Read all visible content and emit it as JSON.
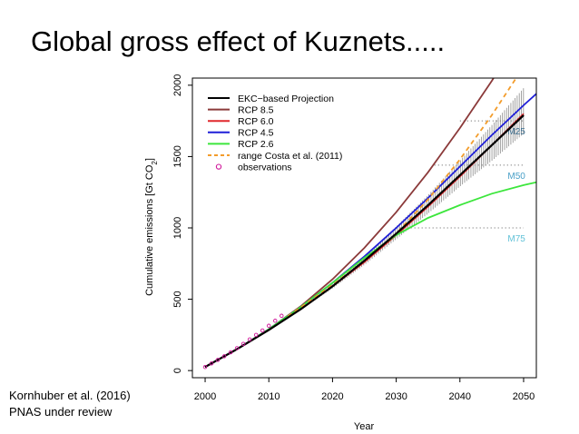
{
  "slide": {
    "title": "Global gross effect of Kuznets.....",
    "citation_line1": "Kornhuber et al. (2016)",
    "citation_line2": "PNAS under review"
  },
  "chart_data": {
    "type": "line",
    "title": "",
    "xlabel": "Year",
    "ylabel": "Cumulative emissions [Gt CO",
    "ylabel_sub": "2",
    "ylabel_close": "]",
    "xlim": [
      1998,
      2052
    ],
    "ylim": [
      -50,
      2050
    ],
    "xticks": [
      2000,
      2010,
      2020,
      2030,
      2040,
      2050
    ],
    "yticks": [
      0,
      500,
      1000,
      1500,
      2000
    ],
    "grid": false,
    "legend_position": "top-left",
    "legend": [
      {
        "label": "EKC−based Projection",
        "color": "#000000",
        "style": "solid"
      },
      {
        "label": "RCP 8.5",
        "color": "#8b3a3a",
        "style": "solid"
      },
      {
        "label": "RCP 6.0",
        "color": "#e0282c",
        "style": "solid"
      },
      {
        "label": "RCP 4.5",
        "color": "#1f1fd8",
        "style": "solid"
      },
      {
        "label": "RCP 2.6",
        "color": "#3ce63c",
        "style": "solid"
      },
      {
        "label": "range Costa et al. (2011)",
        "color": "#f39c2b",
        "style": "dashed"
      },
      {
        "label": "observations",
        "color": "#d0169a",
        "style": "circle"
      }
    ],
    "series": [
      {
        "name": "RCP 8.5",
        "color": "#8b3a3a",
        "x": [
          2000,
          2005,
          2010,
          2015,
          2020,
          2025,
          2030,
          2035,
          2040,
          2045,
          2048
        ],
        "y": [
          25,
          150,
          290,
          450,
          640,
          860,
          1110,
          1390,
          1700,
          2030,
          2240
        ]
      },
      {
        "name": "RCP 6.0",
        "color": "#e0282c",
        "x": [
          2000,
          2005,
          2010,
          2015,
          2020,
          2025,
          2030,
          2035,
          2040,
          2045,
          2050
        ],
        "y": [
          25,
          150,
          285,
          430,
          590,
          760,
          950,
          1150,
          1360,
          1580,
          1800
        ]
      },
      {
        "name": "RCP 4.5",
        "color": "#1f1fd8",
        "x": [
          2000,
          2005,
          2010,
          2015,
          2020,
          2025,
          2030,
          2035,
          2040,
          2045,
          2050,
          2052
        ],
        "y": [
          25,
          150,
          290,
          445,
          615,
          800,
          1000,
          1210,
          1430,
          1650,
          1860,
          1940
        ]
      },
      {
        "name": "RCP 2.6",
        "color": "#3ce63c",
        "x": [
          2000,
          2005,
          2010,
          2015,
          2020,
          2025,
          2030,
          2035,
          2040,
          2045,
          2050,
          2052
        ],
        "y": [
          25,
          150,
          290,
          445,
          615,
          790,
          950,
          1070,
          1160,
          1240,
          1300,
          1320
        ]
      },
      {
        "name": "range Costa et al. (2011)",
        "color": "#f39c2b",
        "dashed": true,
        "x": [
          2013,
          2020,
          2025,
          2030,
          2035,
          2040,
          2045,
          2050
        ],
        "y": [
          380,
          600,
          770,
          960,
          1200,
          1480,
          1790,
          2130
        ]
      },
      {
        "name": "EKC−based Projection",
        "color": "#000000",
        "x": [
          2000,
          2005,
          2010,
          2015,
          2020,
          2025,
          2030,
          2035,
          2040,
          2045,
          2050
        ],
        "y": [
          25,
          150,
          285,
          430,
          590,
          770,
          960,
          1160,
          1370,
          1580,
          1790
        ]
      }
    ],
    "ekc_range": {
      "x": [
        2015,
        2020,
        2025,
        2030,
        2035,
        2040,
        2045,
        2050
      ],
      "low": [
        425,
        575,
        740,
        920,
        1100,
        1290,
        1470,
        1660
      ],
      "high": [
        440,
        610,
        800,
        1010,
        1230,
        1470,
        1720,
        1980
      ]
    },
    "observations": {
      "x": [
        2000,
        2001,
        2002,
        2003,
        2004,
        2005,
        2006,
        2007,
        2008,
        2009,
        2010,
        2011,
        2012
      ],
      "y": [
        25,
        50,
        75,
        100,
        128,
        157,
        187,
        218,
        250,
        281,
        314,
        349,
        384
      ]
    },
    "thresholds": [
      {
        "label": "M25",
        "y": 1750,
        "x_start": 2040,
        "color": "#3b6e8f"
      },
      {
        "label": "M50",
        "y": 1440,
        "x_start": 2036,
        "color": "#4aa0c8"
      },
      {
        "label": "M75",
        "y": 1000,
        "x_start": 2030,
        "color": "#63c2d8"
      }
    ]
  }
}
